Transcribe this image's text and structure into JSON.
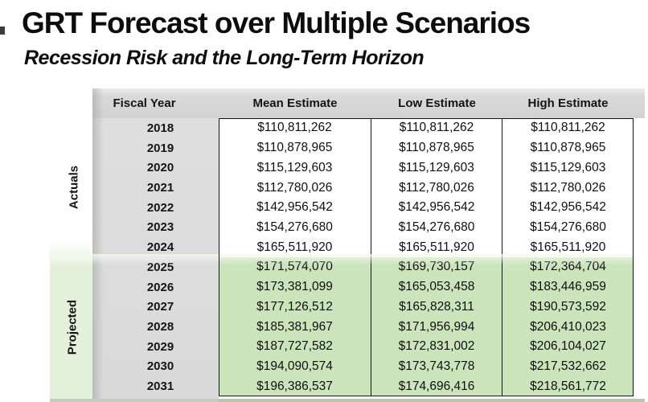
{
  "page": {
    "title": "GRT Forecast over Multiple Scenarios",
    "subtitle": "Recession Risk and the Long-Term Horizon"
  },
  "table": {
    "columns": [
      "Fiscal Year",
      "Mean Estimate",
      "Low Estimate",
      "High Estimate"
    ],
    "group_labels": {
      "actuals": "Actuals",
      "projected": "Projected"
    },
    "rows": [
      {
        "year": "2018",
        "mean": "$110,811,262",
        "low": "$110,811,262",
        "high": "$110,811,262",
        "group": "actuals"
      },
      {
        "year": "2019",
        "mean": "$110,878,965",
        "low": "$110,878,965",
        "high": "$110,878,965",
        "group": "actuals"
      },
      {
        "year": "2020",
        "mean": "$115,129,603",
        "low": "$115,129,603",
        "high": "$115,129,603",
        "group": "actuals"
      },
      {
        "year": "2021",
        "mean": "$112,780,026",
        "low": "$112,780,026",
        "high": "$112,780,026",
        "group": "actuals"
      },
      {
        "year": "2022",
        "mean": "$142,956,542",
        "low": "$142,956,542",
        "high": "$142,956,542",
        "group": "actuals"
      },
      {
        "year": "2023",
        "mean": "$154,276,680",
        "low": "$154,276,680",
        "high": "$154,276,680",
        "group": "actuals"
      },
      {
        "year": "2024",
        "mean": "$165,511,920",
        "low": "$165,511,920",
        "high": "$165,511,920",
        "group": "actuals"
      },
      {
        "year": "2025",
        "mean": "$171,574,070",
        "low": "$169,730,157",
        "high": "$172,364,704",
        "group": "projected"
      },
      {
        "year": "2026",
        "mean": "$173,381,099",
        "low": "$165,053,458",
        "high": "$183,446,959",
        "group": "projected"
      },
      {
        "year": "2027",
        "mean": "$177,126,512",
        "low": "$165,828,311",
        "high": "$190,573,592",
        "group": "projected"
      },
      {
        "year": "2028",
        "mean": "$185,381,967",
        "low": "$171,956,994",
        "high": "$206,410,023",
        "group": "projected"
      },
      {
        "year": "2029",
        "mean": "$187,727,582",
        "low": "$172,831,002",
        "high": "$206,104,027",
        "group": "projected"
      },
      {
        "year": "2030",
        "mean": "$194,090,574",
        "low": "$173,743,778",
        "high": "$217,532,662",
        "group": "projected"
      },
      {
        "year": "2031",
        "mean": "$196,386,537",
        "low": "$174,696,416",
        "high": "$218,561,772",
        "group": "projected"
      }
    ]
  },
  "colors": {
    "projected_row_green": "#cbe4bc",
    "projected_strip_green": "#e3f0db",
    "header_gray": "#d6d6d6",
    "fiscal_column_gray": "#dcdcdc",
    "table_border": "#141414"
  }
}
